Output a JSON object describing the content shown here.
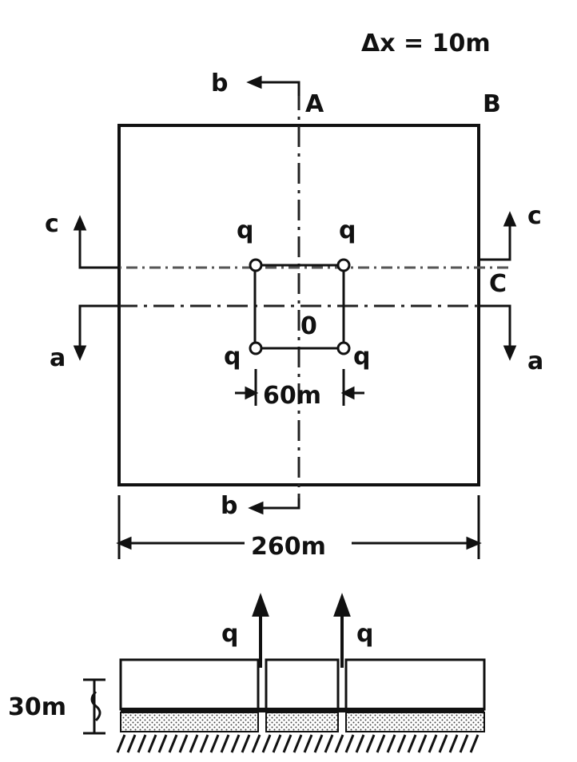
{
  "annotation": {
    "grid_spacing": "Δx = 10m"
  },
  "plan": {
    "corners": {
      "a": "A",
      "b": "B",
      "c": "C",
      "o": "0"
    },
    "sections": {
      "a": "a",
      "b": "b",
      "c": "c"
    },
    "well_label": "q",
    "inner_dim": "60m",
    "outer_dim": "260m"
  },
  "section": {
    "flow_label": "q",
    "thickness": "30m"
  }
}
